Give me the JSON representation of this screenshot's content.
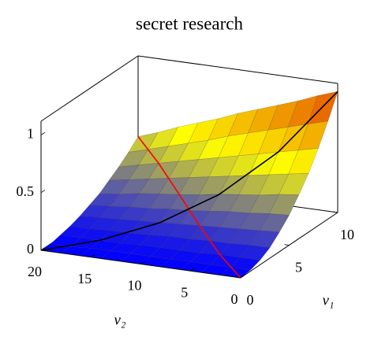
{
  "chart_data": {
    "type": "surface",
    "title": "secret research",
    "xlabel": "v₂",
    "ylabel": "v₁",
    "xlim": [
      0,
      20
    ],
    "ylim": [
      0,
      10
    ],
    "zlim": [
      0,
      1.12
    ],
    "xticks": [
      0,
      5,
      10,
      15,
      20
    ],
    "yticks": [
      0,
      5,
      10
    ],
    "zticks": [
      0,
      0.5,
      1
    ],
    "colormap": [
      "#0000ff",
      "#ffff00",
      "#e23c00"
    ],
    "x": [
      0,
      2,
      4,
      6,
      8,
      10,
      12,
      14,
      16,
      18,
      20
    ],
    "y": [
      0,
      1,
      2,
      3,
      4,
      5,
      6,
      7,
      8,
      9,
      10
    ],
    "z": [
      [
        0,
        0,
        0,
        0,
        0,
        0,
        0,
        0,
        0,
        0,
        0
      ],
      [
        0.01,
        0.01,
        0.01,
        0.01,
        0.01,
        0.01,
        0.01,
        0.01,
        0.01,
        0,
        0
      ],
      [
        0.04,
        0.04,
        0.04,
        0.03,
        0.03,
        0.03,
        0.03,
        0.02,
        0.02,
        0.02,
        0.02
      ],
      [
        0.09,
        0.09,
        0.08,
        0.08,
        0.07,
        0.07,
        0.06,
        0.05,
        0.05,
        0.04,
        0.04
      ],
      [
        0.17,
        0.16,
        0.15,
        0.14,
        0.13,
        0.12,
        0.11,
        0.1,
        0.09,
        0.08,
        0.07
      ],
      [
        0.26,
        0.25,
        0.23,
        0.22,
        0.2,
        0.18,
        0.17,
        0.15,
        0.14,
        0.12,
        0.11
      ],
      [
        0.38,
        0.36,
        0.33,
        0.31,
        0.29,
        0.26,
        0.24,
        0.22,
        0.2,
        0.17,
        0.15
      ],
      [
        0.51,
        0.48,
        0.45,
        0.42,
        0.39,
        0.36,
        0.33,
        0.3,
        0.27,
        0.24,
        0.21
      ],
      [
        0.67,
        0.63,
        0.59,
        0.55,
        0.51,
        0.47,
        0.43,
        0.39,
        0.35,
        0.31,
        0.27
      ],
      [
        0.85,
        0.8,
        0.75,
        0.7,
        0.65,
        0.6,
        0.54,
        0.49,
        0.44,
        0.39,
        0.34
      ],
      [
        1.05,
        0.99,
        0.92,
        0.86,
        0.8,
        0.74,
        0.67,
        0.61,
        0.55,
        0.48,
        0.42
      ]
    ],
    "lines": [
      {
        "color": "#ff0000",
        "x": [
          0,
          4,
          8,
          12,
          16,
          20
        ],
        "y": [
          0,
          2,
          4,
          6,
          8,
          10
        ],
        "z": [
          0,
          0.037,
          0.128,
          0.242,
          0.349,
          0.42
        ]
      },
      {
        "color": "#000000",
        "x": [
          20,
          16,
          12,
          8,
          4,
          0
        ],
        "y": [
          0,
          2,
          4,
          6,
          8,
          10
        ],
        "z": [
          0,
          0.022,
          0.108,
          0.287,
          0.591,
          1.05
        ]
      }
    ]
  }
}
